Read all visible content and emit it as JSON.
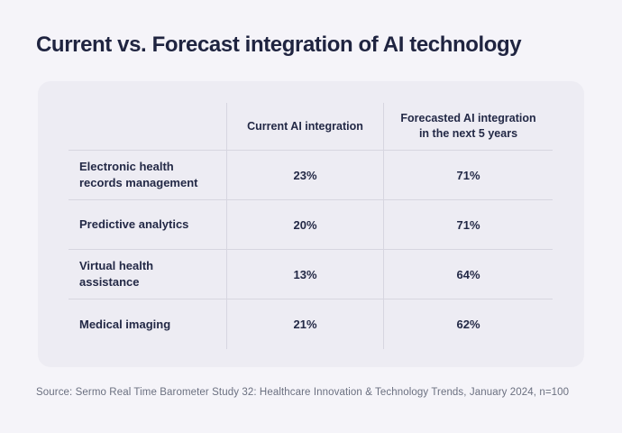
{
  "page": {
    "title": "Current vs. Forecast integration of AI technology",
    "source": "Source: Sermo Real Time Barometer Study 32: Healthcare Innovation & Technology Trends, January 2024, n=100",
    "colors": {
      "page_background": "#f5f4f9",
      "card_background": "#edecf3",
      "text": "#232946",
      "muted_text": "#6b7080",
      "grid_line": "#d7d6e0"
    }
  },
  "table": {
    "columns": [
      "",
      "Current AI integration",
      "Forecasted AI integration in the next 5 years"
    ],
    "rows": [
      {
        "label": "Electronic health records management",
        "current": "23%",
        "forecast": "71%"
      },
      {
        "label": "Predictive analytics",
        "current": "20%",
        "forecast": "71%"
      },
      {
        "label": "Virtual health assistance",
        "current": "13%",
        "forecast": "64%"
      },
      {
        "label": "Medical imaging",
        "current": "21%",
        "forecast": "62%"
      }
    ]
  },
  "chart_data": {
    "type": "table",
    "title": "Current vs. Forecast integration of AI technology",
    "categories": [
      "Electronic health records management",
      "Predictive analytics",
      "Virtual health assistance",
      "Medical imaging"
    ],
    "series": [
      {
        "name": "Current AI integration",
        "values": [
          23,
          20,
          13,
          21
        ]
      },
      {
        "name": "Forecasted AI integration in the next 5 years",
        "values": [
          71,
          71,
          64,
          62
        ]
      }
    ],
    "unit": "%",
    "source": "Sermo Real Time Barometer Study 32: Healthcare Innovation & Technology Trends, January 2024, n=100"
  }
}
